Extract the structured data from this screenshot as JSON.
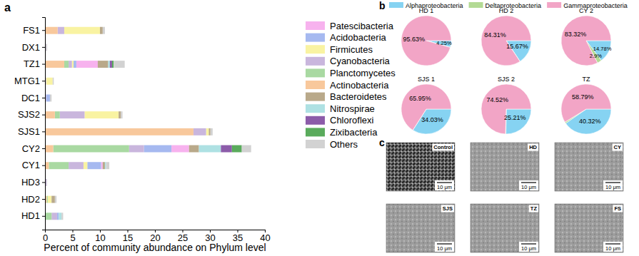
{
  "chart_data": [
    {
      "type": "bar",
      "label": "a",
      "orientation": "horizontal",
      "stacked": true,
      "grid": false,
      "legend": "right",
      "xlabel": "Percent of community abundance on Phylum level",
      "xlim": [
        0,
        40
      ],
      "xticks": [
        0,
        5,
        10,
        15,
        20,
        25,
        30,
        35,
        40
      ],
      "categories": [
        "FS1",
        "DX1",
        "TZ1",
        "MTG1",
        "DC1",
        "SJS2",
        "SJS1",
        "CY2",
        "CY1",
        "HD3",
        "HD2",
        "HD1"
      ],
      "series": [
        {
          "name": "Patescibacteria",
          "color": "#f7b2ee",
          "values": [
            0,
            0,
            3.9,
            0,
            0,
            0,
            0,
            3.2,
            0.3,
            0,
            0,
            0
          ]
        },
        {
          "name": "Acidobacteria",
          "color": "#a6b9f0",
          "values": [
            0,
            0,
            0.5,
            0,
            0.7,
            0,
            0,
            5.0,
            2.5,
            0,
            0,
            0.3
          ]
        },
        {
          "name": "Firmicutes",
          "color": "#f9f3a2",
          "values": [
            6.5,
            0,
            0.3,
            1.2,
            0,
            6.2,
            0.5,
            0,
            0.7,
            0,
            0.7,
            0
          ]
        },
        {
          "name": "Cyanobacteria",
          "color": "#c9b6dd",
          "values": [
            1.2,
            0.2,
            0.6,
            0.2,
            0.2,
            4.5,
            2.3,
            2.7,
            2.7,
            0.3,
            0,
            1.0
          ]
        },
        {
          "name": "Planctomycetes",
          "color": "#a9d9a2",
          "values": [
            0,
            0,
            0.8,
            0,
            0,
            0.9,
            0,
            13.8,
            3.6,
            0,
            0.2,
            1.2
          ]
        },
        {
          "name": "Actinobacteria",
          "color": "#f8c89c",
          "values": [
            2.3,
            0,
            3.5,
            0,
            0,
            1.8,
            27.0,
            1.5,
            0.7,
            0,
            0.3,
            0
          ]
        },
        {
          "name": "Bacteroidetes",
          "color": "#b9a98a",
          "values": [
            0.5,
            0,
            1.9,
            0,
            0,
            0.4,
            0.3,
            1.8,
            0.4,
            0,
            0.6,
            0
          ]
        },
        {
          "name": "Nitrospirae",
          "color": "#aee1e3",
          "values": [
            0,
            0,
            0.3,
            0,
            0,
            0,
            0,
            4.0,
            0.2,
            0,
            0,
            0.5
          ]
        },
        {
          "name": "Chloroflexi",
          "color": "#8c5ca9",
          "values": [
            0,
            0,
            0.4,
            0,
            0,
            0,
            0,
            2.0,
            0,
            0,
            0,
            0
          ]
        },
        {
          "name": "Zixibacteria",
          "color": "#5aab5c",
          "values": [
            0,
            0,
            0.3,
            0,
            0,
            0,
            0,
            1.8,
            0,
            0,
            0,
            0
          ]
        },
        {
          "name": "Others",
          "color": "#d2d2d2",
          "values": [
            0.4,
            0.2,
            2.0,
            0.2,
            0.3,
            0.3,
            0.4,
            1.7,
            0.6,
            0.1,
            0.3,
            0.3
          ]
        }
      ]
    },
    {
      "type": "pie",
      "label": "b",
      "data_labels": true,
      "categories": [
        "Alphaproteobacteria",
        "Deltaproteobacteria",
        "Gammaproteobacteria"
      ],
      "colors": [
        "#86d3f2",
        "#b3da94",
        "#f2a5c6"
      ],
      "pies": [
        {
          "title": "HD 1",
          "values": [
            4.25,
            0.12,
            95.63
          ],
          "value_labels": [
            "4.25%",
            null,
            "95.63%"
          ]
        },
        {
          "title": "HD 2",
          "values": [
            15.67,
            0.02,
            84.31
          ],
          "value_labels": [
            "15.67%",
            null,
            "84.31%"
          ]
        },
        {
          "title": "CY 2",
          "values": [
            14.78,
            2.9,
            83.32
          ],
          "value_labels": [
            "14.78%",
            "2.9%",
            "83.32%"
          ]
        },
        {
          "title": "SJS 1",
          "values": [
            34.03,
            0.02,
            65.95
          ],
          "value_labels": [
            "34.03%",
            null,
            "65.95%"
          ]
        },
        {
          "title": "SJS 2",
          "values": [
            25.21,
            0.27,
            74.52
          ],
          "value_labels": [
            "25.21%",
            null,
            "74.52%"
          ]
        },
        {
          "title": "TZ",
          "values": [
            40.32,
            0.89,
            58.79
          ],
          "value_labels": [
            "40.32%",
            null,
            "58.79%"
          ]
        }
      ]
    },
    {
      "type": "image",
      "label": "c",
      "panels": [
        {
          "title": "Control",
          "scale_bar": "10 μm"
        },
        {
          "title": "HD",
          "scale_bar": "10 μm"
        },
        {
          "title": "CY",
          "scale_bar": "10 μm"
        },
        {
          "title": "SJS",
          "scale_bar": "10 μm"
        },
        {
          "title": "TZ",
          "scale_bar": "10 μm"
        },
        {
          "title": "FS",
          "scale_bar": "10 μm"
        }
      ]
    }
  ]
}
